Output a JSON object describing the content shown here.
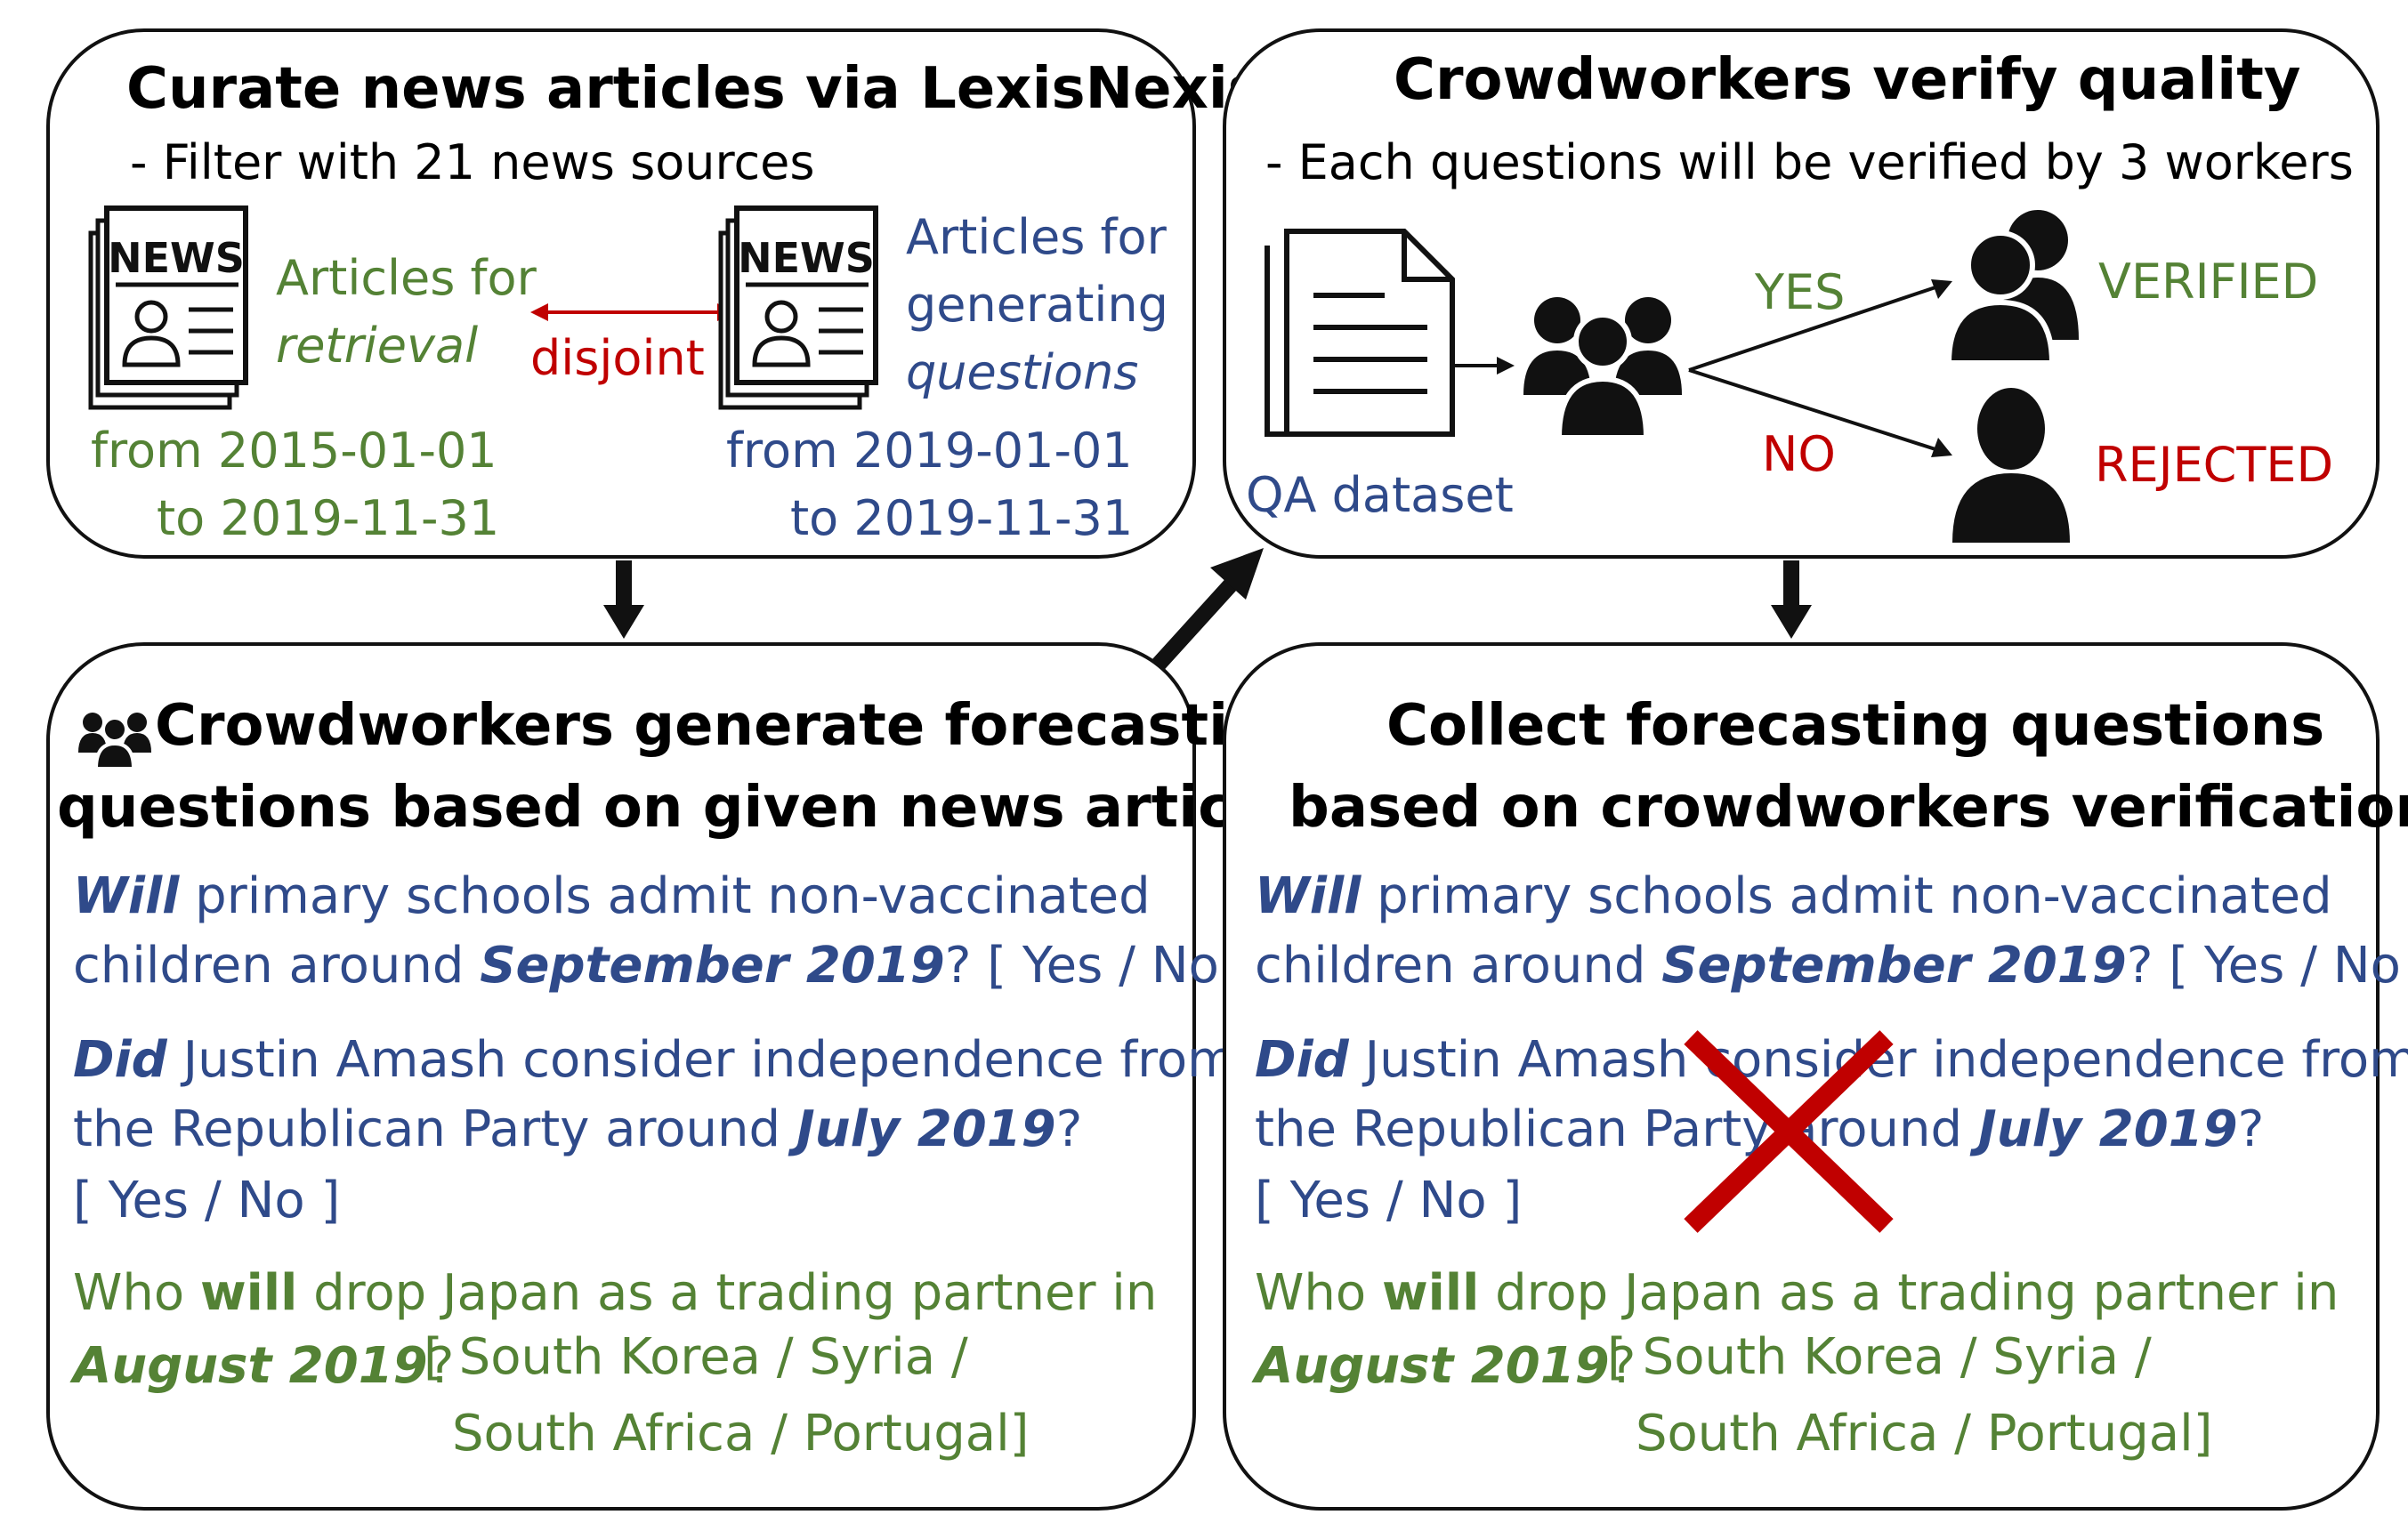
{
  "colors": {
    "green": "#548235",
    "blue": "#2F4A8A",
    "red": "#C00000",
    "black": "#111111"
  },
  "box1": {
    "title": "Curate news articles via LexisNexis",
    "subtitle": "- Filter with 21 news sources",
    "news_badge": "NEWS",
    "left_label_1": "Articles for",
    "left_label_2": "retrieval",
    "right_label_1": "Articles for",
    "right_label_2": "generating",
    "right_label_3": "questions",
    "disjoint": "disjoint",
    "left_range_1": "from 2015-01-01",
    "left_range_2": "to 2019-11-31",
    "right_range_1": "from 2019-01-01",
    "right_range_2": "to 2019-11-31"
  },
  "box2": {
    "title": "Crowdworkers verify quality",
    "subtitle": "- Each questions will be verified by 3 workers",
    "yes": "YES",
    "no": "NO",
    "verified": "VERIFIED",
    "rejected": "REJECTED",
    "dataset_label": "QA dataset"
  },
  "box3": {
    "title_1": "Crowdworkers generate forecasting",
    "title_2": "questions based on given news articles"
  },
  "box4": {
    "title_1": "Collect forecasting questions",
    "title_2": "based on crowdworkers verification"
  },
  "questions": {
    "q1": {
      "w1": "Will",
      "t1": " primary schools admit non-vaccinated",
      "t2": "children around ",
      "w2": "September 2019",
      "t3": "? [ Yes / No ]"
    },
    "q2": {
      "w1": "Did",
      "t1": " Justin Amash consider independence from",
      "t2": "the Republican Party around ",
      "w2": "July 2019",
      "t3": "?",
      "opts": "[ Yes / No ]"
    },
    "q3": {
      "t0": "Who ",
      "w1": "will",
      "t1": " drop Japan as a trading partner in",
      "w2": "August 2019",
      "t2": "?",
      "opts1": "[ South Korea / Syria /",
      "opts2": "South Africa / Portugal]"
    }
  }
}
